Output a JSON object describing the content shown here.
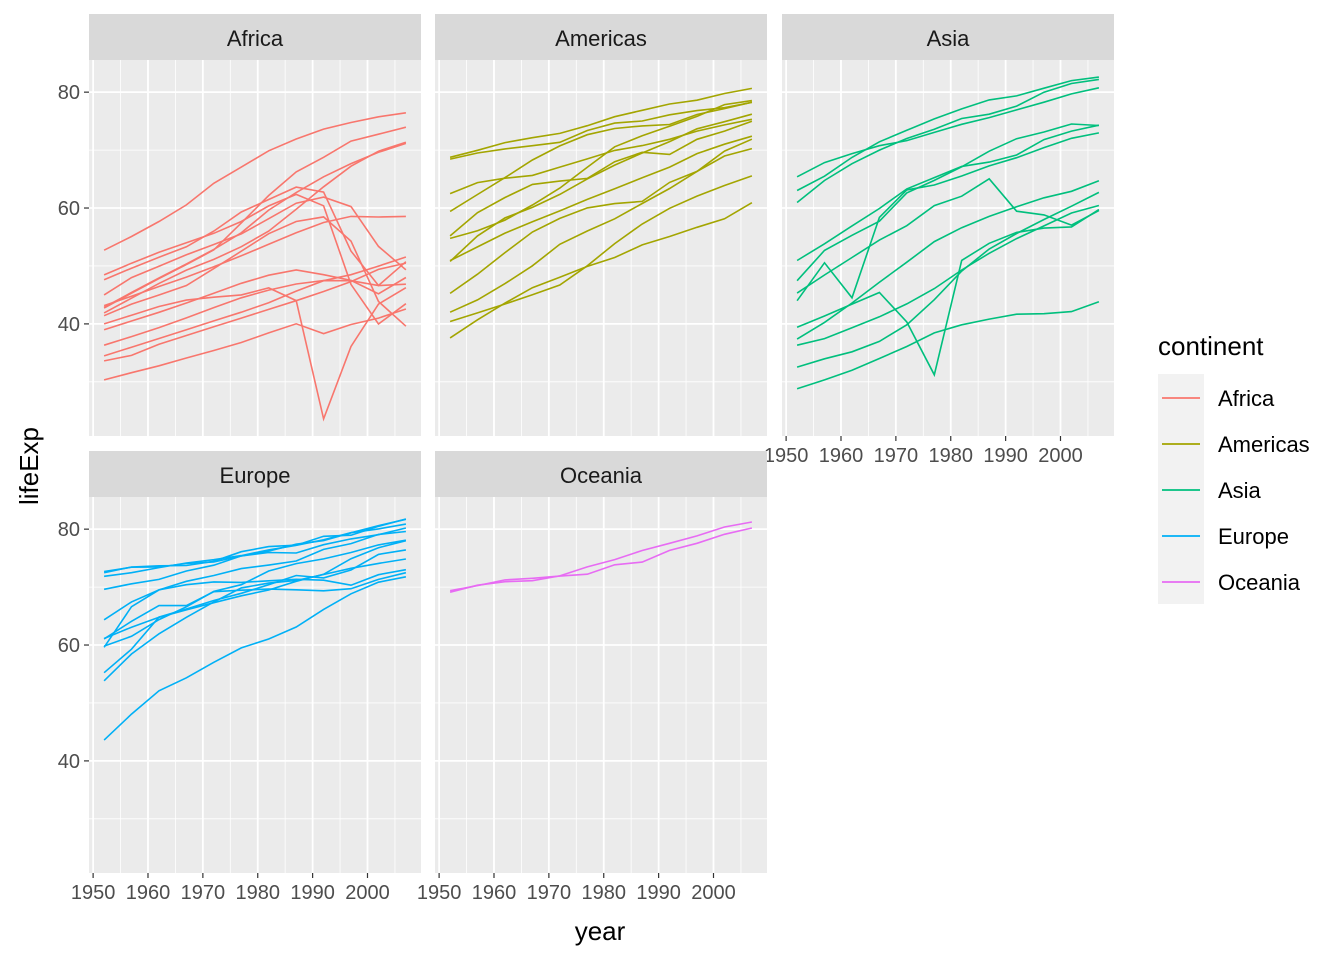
{
  "chart_data": {
    "type": "line",
    "facet_by": "continent",
    "xlabel": "year",
    "ylabel": "lifeExp",
    "xlim": [
      1949.25,
      2009.75
    ],
    "ylim": [
      20.65,
      85.55
    ],
    "x_ticks": [
      1950,
      1960,
      1970,
      1980,
      1990,
      2000
    ],
    "y_ticks": [
      40,
      60,
      80
    ],
    "grid": true,
    "legend": {
      "title": "continent",
      "placement": "right"
    },
    "years": [
      1952,
      1957,
      1962,
      1967,
      1972,
      1977,
      1982,
      1987,
      1992,
      1997,
      2002,
      2007
    ],
    "panels": [
      {
        "name": "Africa",
        "color": "#F8766D",
        "series": [
          [
            52.72,
            55.09,
            57.67,
            60.54,
            64.27,
            67.06,
            69.88,
            71.91,
            73.62,
            74.77,
            75.74,
            76.44
          ],
          [
            30.33,
            31.57,
            32.77,
            34.11,
            35.4,
            36.79,
            38.45,
            40.01,
            38.33,
            39.9,
            41.0,
            42.57
          ],
          [
            48.45,
            50.47,
            52.36,
            53.99,
            55.64,
            57.67,
            60.36,
            62.35,
            60.38,
            46.81,
            39.99,
            43.49
          ],
          [
            47.62,
            49.62,
            51.52,
            53.3,
            56.02,
            59.32,
            61.48,
            63.62,
            62.75,
            52.56,
            46.63,
            50.73
          ],
          [
            45.01,
            47.99,
            49.95,
            51.93,
            53.7,
            55.53,
            58.16,
            60.83,
            61.89,
            60.24,
            53.37,
            49.34
          ],
          [
            41.89,
            44.44,
            46.99,
            49.29,
            51.14,
            53.32,
            56.01,
            59.8,
            63.67,
            67.22,
            69.81,
            71.34
          ],
          [
            42.72,
            45.29,
            47.81,
            50.23,
            52.77,
            57.44,
            62.16,
            66.23,
            68.76,
            71.56,
            72.74,
            73.95
          ],
          [
            42.87,
            45.42,
            47.92,
            50.33,
            52.86,
            55.73,
            59.65,
            62.68,
            65.39,
            67.66,
            69.62,
            71.16
          ],
          [
            36.32,
            37.8,
            39.36,
            41.04,
            42.82,
            44.51,
            45.83,
            46.89,
            47.47,
            47.46,
            46.61,
            46.86
          ],
          [
            41.41,
            43.42,
            44.99,
            46.63,
            49.55,
            52.54,
            55.56,
            57.68,
            58.47,
            54.29,
            43.87,
            39.61
          ],
          [
            40.0,
            41.5,
            43.0,
            44.1,
            44.6,
            45.0,
            46.22,
            44.02,
            23.6,
            36.09,
            43.41,
            46.24
          ],
          [
            34.48,
            35.98,
            37.48,
            38.99,
            40.52,
            42.02,
            43.66,
            45.66,
            47.46,
            48.49,
            49.97,
            51.54
          ],
          [
            39.0,
            40.5,
            42.0,
            43.6,
            45.3,
            47.0,
            48.4,
            49.3,
            48.5,
            47.5,
            45.2,
            48.0
          ],
          [
            33.61,
            34.56,
            36.5,
            38.0,
            39.5,
            41.0,
            42.5,
            44.0,
            45.6,
            47.3,
            49.4,
            50.5
          ],
          [
            43.15,
            44.78,
            46.45,
            48.07,
            49.88,
            51.76,
            53.74,
            55.73,
            57.5,
            58.56,
            58.45,
            58.56
          ]
        ]
      },
      {
        "name": "Americas",
        "color": "#A3A500",
        "series": [
          [
            68.75,
            69.96,
            71.3,
            72.13,
            72.88,
            74.21,
            75.76,
            76.86,
            77.95,
            78.61,
            79.77,
            80.65
          ],
          [
            68.44,
            69.49,
            70.21,
            70.76,
            71.34,
            73.38,
            74.65,
            75.02,
            76.09,
            76.81,
            77.31,
            78.24
          ],
          [
            37.58,
            40.7,
            43.59,
            46.24,
            48.04,
            49.92,
            51.46,
            53.64,
            55.09,
            56.67,
            58.14,
            60.92
          ],
          [
            40.41,
            41.89,
            43.43,
            45.03,
            46.71,
            50.02,
            53.86,
            57.25,
            59.96,
            62.05,
            63.88,
            65.55
          ],
          [
            50.92,
            53.29,
            55.67,
            57.63,
            59.5,
            61.49,
            63.34,
            65.21,
            67.06,
            69.39,
            71.01,
            72.39
          ],
          [
            50.79,
            55.19,
            58.3,
            60.11,
            62.36,
            65.03,
            67.41,
            69.5,
            71.46,
            73.67,
            74.9,
            76.2
          ],
          [
            54.75,
            56.07,
            57.92,
            60.52,
            63.44,
            67.05,
            70.57,
            72.49,
            74.13,
            75.82,
            77.86,
            78.55
          ],
          [
            59.42,
            62.33,
            65.25,
            68.29,
            70.72,
            72.65,
            73.72,
            74.17,
            74.41,
            76.15,
            77.16,
            78.27
          ],
          [
            62.49,
            64.39,
            65.14,
            65.63,
            67.07,
            68.48,
            69.94,
            70.77,
            71.87,
            73.28,
            74.34,
            75.32
          ],
          [
            42.02,
            44.14,
            46.95,
            50.02,
            53.74,
            56.03,
            58.14,
            60.78,
            63.37,
            66.32,
            68.98,
            70.26
          ],
          [
            45.26,
            48.57,
            52.31,
            55.86,
            58.21,
            60.03,
            60.77,
            61.15,
            64.43,
            66.32,
            69.82,
            71.88
          ],
          [
            55.19,
            59.2,
            61.82,
            64.07,
            64.65,
            65.12,
            68.0,
            69.61,
            69.25,
            71.87,
            73.28,
            74.99
          ]
        ]
      },
      {
        "name": "Asia",
        "color": "#00BF7D",
        "series": [
          [
            28.8,
            30.33,
            32.0,
            34.02,
            36.09,
            38.44,
            39.85,
            40.82,
            41.67,
            41.76,
            42.13,
            43.83
          ],
          [
            39.42,
            41.37,
            43.42,
            45.42,
            40.32,
            31.22,
            50.96,
            53.91,
            55.8,
            56.53,
            56.75,
            59.72
          ],
          [
            63.03,
            65.5,
            68.73,
            71.43,
            73.42,
            75.38,
            77.11,
            78.67,
            79.36,
            80.69,
            82.0,
            82.6
          ],
          [
            44.0,
            50.55,
            44.5,
            58.38,
            63.12,
            63.97,
            65.53,
            67.27,
            68.69,
            70.43,
            72.03,
            72.96
          ],
          [
            65.39,
            67.84,
            69.39,
            70.75,
            71.63,
            73.06,
            74.45,
            75.6,
            76.93,
            78.27,
            79.7,
            80.75
          ],
          [
            37.37,
            40.25,
            43.61,
            47.19,
            50.65,
            54.21,
            56.6,
            58.55,
            60.22,
            61.77,
            62.88,
            64.7
          ],
          [
            45.32,
            48.44,
            51.46,
            54.46,
            56.95,
            60.41,
            62.04,
            65.04,
            59.46,
            58.81,
            57.05,
            59.55
          ],
          [
            60.96,
            64.75,
            67.65,
            70.0,
            72.0,
            73.6,
            75.45,
            76.2,
            77.6,
            80.0,
            81.5,
            82.21
          ],
          [
            32.55,
            33.97,
            35.18,
            36.98,
            39.85,
            44.18,
            49.11,
            52.92,
            55.6,
            58.02,
            60.31,
            62.7
          ],
          [
            36.32,
            37.46,
            39.35,
            41.22,
            43.45,
            46.1,
            49.3,
            52.19,
            54.73,
            56.91,
            59.14,
            60.44
          ],
          [
            47.45,
            52.68,
            55.29,
            57.72,
            62.61,
            64.77,
            67.12,
            69.81,
            71.97,
            73.12,
            74.5,
            74.25
          ],
          [
            50.94,
            53.83,
            56.92,
            59.92,
            63.3,
            65.26,
            67.18,
            67.92,
            69.16,
            71.81,
            73.27,
            74.29
          ]
        ]
      },
      {
        "name": "Europe",
        "color": "#00B0F6",
        "series": [
          [
            43.59,
            48.08,
            52.1,
            54.34,
            57.01,
            59.51,
            61.04,
            63.11,
            66.15,
            68.84,
            70.85,
            71.78
          ],
          [
            55.23,
            59.28,
            64.82,
            66.22,
            67.69,
            68.93,
            70.42,
            72.0,
            71.58,
            72.95,
            75.65,
            76.42
          ],
          [
            59.82,
            61.51,
            64.39,
            66.6,
            69.26,
            70.41,
            72.77,
            74.06,
            74.86,
            75.97,
            77.29,
            78.1
          ],
          [
            72.67,
            73.44,
            73.47,
            74.08,
            74.34,
            75.37,
            75.97,
            75.89,
            77.32,
            78.32,
            79.05,
            80.2
          ],
          [
            72.49,
            73.47,
            73.68,
            73.73,
            74.46,
            76.11,
            76.99,
            77.23,
            78.77,
            78.95,
            80.5,
            81.76
          ],
          [
            59.6,
            66.61,
            69.51,
            70.42,
            70.9,
            70.81,
            71.08,
            71.34,
            71.19,
            70.32,
            72.14,
            73.01
          ],
          [
            61.05,
            64.1,
            66.8,
            66.8,
            69.21,
            69.46,
            69.66,
            69.53,
            69.36,
            69.72,
            71.32,
            72.48
          ],
          [
            71.86,
            72.49,
            73.37,
            74.16,
            74.72,
            75.44,
            76.42,
            77.19,
            78.16,
            79.39,
            80.04,
            80.88
          ],
          [
            69.62,
            70.56,
            71.32,
            72.77,
            73.78,
            75.39,
            76.21,
            77.41,
            78.03,
            79.37,
            80.62,
            81.7
          ],
          [
            53.82,
            58.45,
            61.93,
            64.79,
            67.45,
            69.86,
            70.69,
            71.14,
            72.18,
            73.24,
            74.09,
            74.85
          ],
          [
            64.36,
            67.45,
            69.51,
            71.0,
            72.0,
            73.2,
            73.8,
            74.5,
            76.5,
            77.5,
            79.1,
            79.6
          ],
          [
            61.13,
            63.08,
            64.79,
            66.08,
            67.3,
            68.5,
            69.5,
            71.0,
            72.2,
            74.9,
            76.8,
            78.0
          ]
        ]
      },
      {
        "name": "Oceania",
        "color": "#E76BF3",
        "series": [
          [
            69.12,
            70.33,
            70.93,
            71.1,
            71.93,
            73.49,
            74.74,
            76.32,
            77.56,
            78.83,
            80.37,
            81.24
          ],
          [
            69.39,
            70.26,
            71.24,
            71.52,
            71.89,
            72.22,
            73.84,
            74.32,
            76.33,
            77.55,
            79.11,
            80.2
          ]
        ]
      }
    ]
  }
}
